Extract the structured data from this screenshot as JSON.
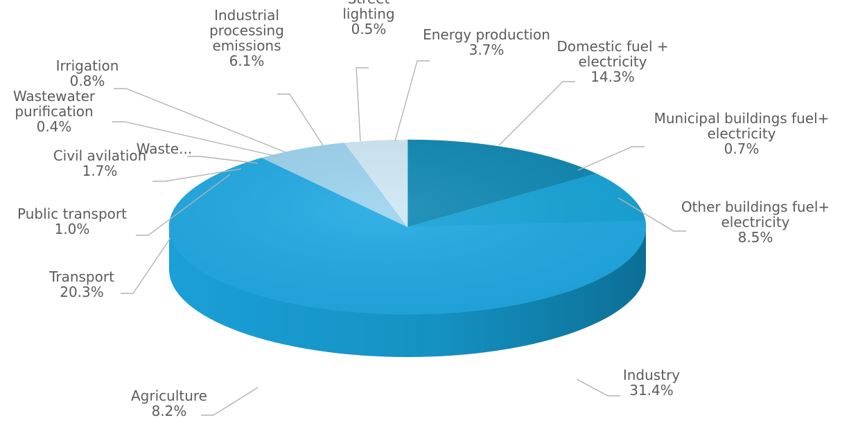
{
  "chart_data": {
    "type": "pie",
    "title": "",
    "style": "3d",
    "colors": {
      "dark_blue": "#0f88b3",
      "mid_blue": "#16a4d9",
      "light_blue": "#1fa9e3",
      "pale_blue": "#9cd3ee",
      "paler_blue": "#cfe8f6"
    },
    "slices": [
      {
        "name": "Domestic fuel + electricity",
        "label_lines": [
          "Domestic fuel +",
          "electricity"
        ],
        "value_label": "14.3%",
        "value": 14.3
      },
      {
        "name": "Municipal buildings fuel+ electricity",
        "label_lines": [
          "Municipal buildings fuel+",
          "electricity"
        ],
        "value_label": "0.7%",
        "value": 0.7
      },
      {
        "name": "Other buildings fuel+ electricity",
        "label_lines": [
          "Other buildings fuel+",
          "electricity"
        ],
        "value_label": "8.5%",
        "value": 8.5
      },
      {
        "name": "Industry",
        "label_lines": [
          "Industry"
        ],
        "value_label": "31.4%",
        "value": 31.4
      },
      {
        "name": "Agriculture",
        "label_lines": [
          "Agriculture"
        ],
        "value_label": "8.2%",
        "value": 8.2
      },
      {
        "name": "Transport",
        "label_lines": [
          "Transport"
        ],
        "value_label": "20.3%",
        "value": 20.3
      },
      {
        "name": "Public transport",
        "label_lines": [
          "Public transport"
        ],
        "value_label": "1.0%",
        "value": 1.0
      },
      {
        "name": "Civil avilation",
        "label_lines": [
          "Civil avilation"
        ],
        "value_label": "1.7%",
        "value": 1.7
      },
      {
        "name": "Waste...",
        "label_lines": [
          "Waste..."
        ],
        "value_label": "",
        "value": 1.0
      },
      {
        "name": "Wastewater purification",
        "label_lines": [
          "Wastewater",
          "purification"
        ],
        "value_label": "0.4%",
        "value": 0.4
      },
      {
        "name": "Irrigation",
        "label_lines": [
          "Irrigation"
        ],
        "value_label": "0.8%",
        "value": 0.8
      },
      {
        "name": "Industrial processing emissions",
        "label_lines": [
          "Industrial",
          "processing",
          "emissions"
        ],
        "value_label": "6.1%",
        "value": 6.1
      },
      {
        "name": "Street lighting",
        "label_lines": [
          "Street",
          "lighting"
        ],
        "value_label": "0.5%",
        "value": 0.5
      },
      {
        "name": "Energy production",
        "label_lines": [
          "Energy production"
        ],
        "value_label": "3.7%",
        "value": 3.7
      }
    ]
  }
}
